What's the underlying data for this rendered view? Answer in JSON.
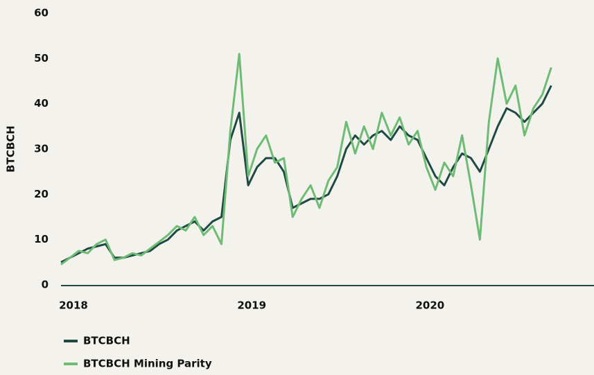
{
  "chart_data": {
    "type": "line",
    "ylabel": "BTCBCH",
    "x": [
      2017.93,
      2017.98,
      2018.03,
      2018.08,
      2018.13,
      2018.18,
      2018.23,
      2018.28,
      2018.33,
      2018.38,
      2018.43,
      2018.48,
      2018.53,
      2018.58,
      2018.63,
      2018.68,
      2018.73,
      2018.78,
      2018.83,
      2018.88,
      2018.93,
      2018.98,
      2019.03,
      2019.08,
      2019.13,
      2019.18,
      2019.23,
      2019.28,
      2019.33,
      2019.38,
      2019.43,
      2019.48,
      2019.53,
      2019.58,
      2019.63,
      2019.68,
      2019.73,
      2019.78,
      2019.83,
      2019.88,
      2019.93,
      2019.98,
      2020.03,
      2020.08,
      2020.13,
      2020.18,
      2020.23,
      2020.28,
      2020.33,
      2020.38,
      2020.43,
      2020.48,
      2020.53,
      2020.58,
      2020.63,
      2020.68
    ],
    "series": [
      {
        "name": "BTCBCH",
        "color": "#1f4a44",
        "values": [
          5,
          6,
          7,
          8,
          8.5,
          9,
          6,
          6,
          6.5,
          7,
          7.5,
          9,
          10,
          12,
          13,
          14,
          12,
          14,
          15,
          32,
          38,
          22,
          26,
          28,
          28,
          25,
          17,
          18,
          19,
          19,
          20,
          24,
          30,
          33,
          31,
          33,
          34,
          32,
          35,
          33,
          32,
          28,
          24,
          22,
          26,
          29,
          28,
          25,
          30,
          35,
          39,
          38,
          36,
          38,
          40,
          44
        ]
      },
      {
        "name": "BTCBCH Mining Parity",
        "color": "#6dbb74",
        "values": [
          4.5,
          6,
          7.5,
          7,
          9,
          10,
          5.5,
          6,
          7,
          6.5,
          8,
          9.5,
          11,
          13,
          12,
          15,
          11,
          13,
          9,
          34,
          51,
          24,
          30,
          33,
          27,
          28,
          15,
          19,
          22,
          17,
          23,
          26,
          36,
          29,
          35,
          30,
          38,
          33,
          37,
          31,
          34,
          26,
          21,
          27,
          24,
          33,
          22,
          10,
          36,
          50,
          40,
          44,
          33,
          39,
          42,
          48
        ]
      }
    ],
    "xlim": [
      2017.93,
      2020.92
    ],
    "xticks": [
      2018,
      2019,
      2020
    ],
    "ylim": [
      0,
      60
    ],
    "yticks": [
      0,
      10,
      20,
      30,
      40,
      50,
      60
    ],
    "legend": "bottom-left"
  }
}
